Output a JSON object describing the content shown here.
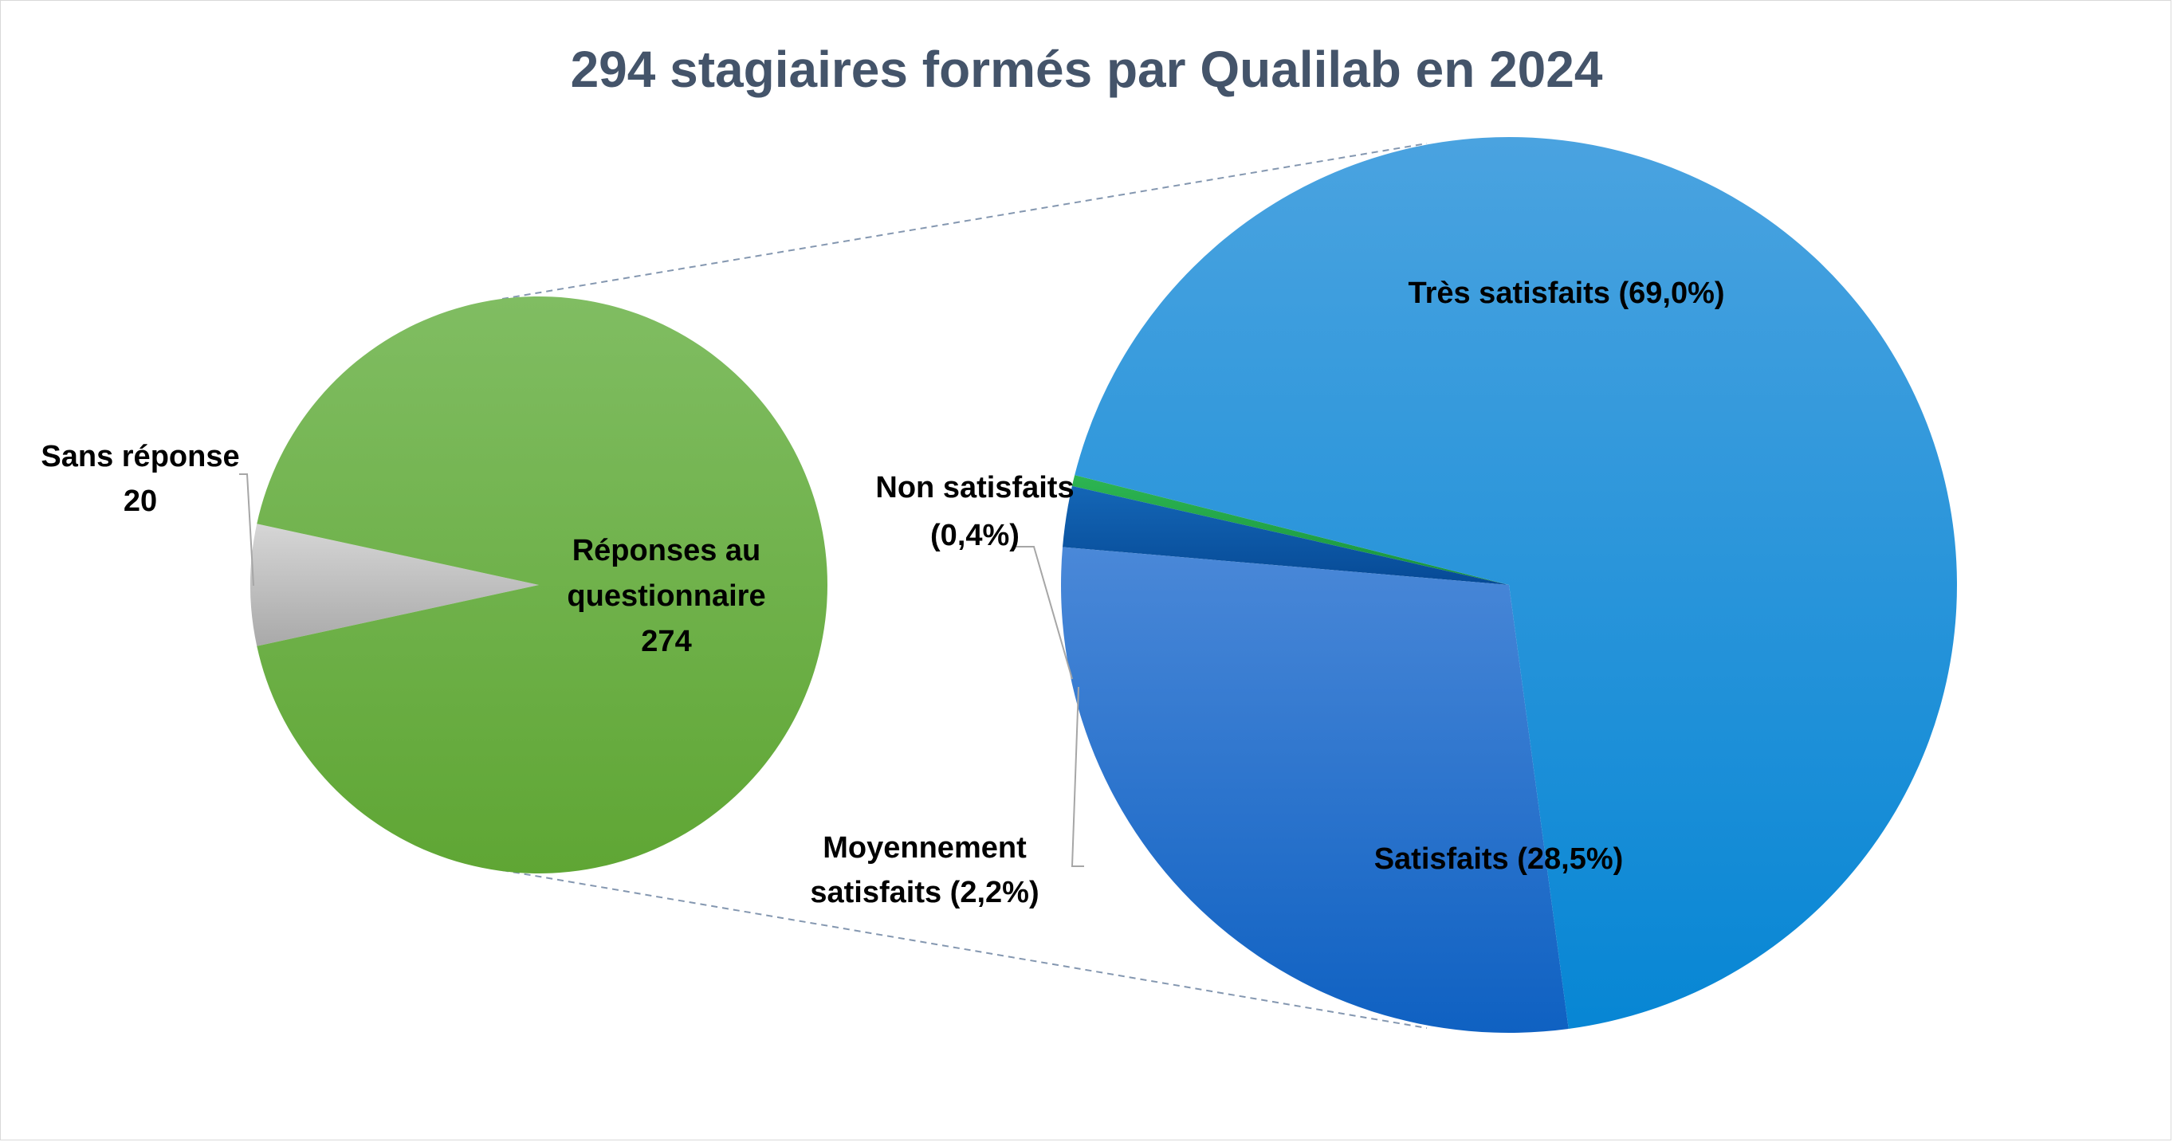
{
  "chart_data": {
    "type": "pie",
    "variant": "pie-of-pie",
    "title": "294 stagiaires formés par Qualilab en 2024",
    "primary": {
      "slices": [
        {
          "name": "Réponses au questionnaire",
          "label_lines": [
            "Réponses au",
            "questionnaire",
            "274"
          ],
          "value": 274,
          "color": "#6aae45"
        },
        {
          "name": "Sans réponse",
          "label_lines": [
            "Sans réponse",
            "20"
          ],
          "value": 20,
          "color": "#bfbfbf"
        }
      ]
    },
    "secondary": {
      "source_slice": "Réponses au questionnaire",
      "slices": [
        {
          "name": "Très satisfaits",
          "label_lines": [
            "Très satisfaits (69,0%)"
          ],
          "value": 69.0,
          "color": "#1592dc"
        },
        {
          "name": "Satisfaits",
          "label_lines": [
            "Satisfaits (28,5%)"
          ],
          "value": 28.5,
          "color": "#2f78d0"
        },
        {
          "name": "Moyennement satisfaits",
          "label_lines": [
            "Moyennement",
            "satisfaits (2,2%)"
          ],
          "value": 2.2,
          "color": "#0b58a8"
        },
        {
          "name": "Non satisfaits",
          "label_lines": [
            "Non satisfaits",
            "(0,4%)"
          ],
          "value": 0.4,
          "color": "#1fa34a"
        }
      ]
    },
    "legend": "none",
    "connector_color": "#8497b0"
  }
}
